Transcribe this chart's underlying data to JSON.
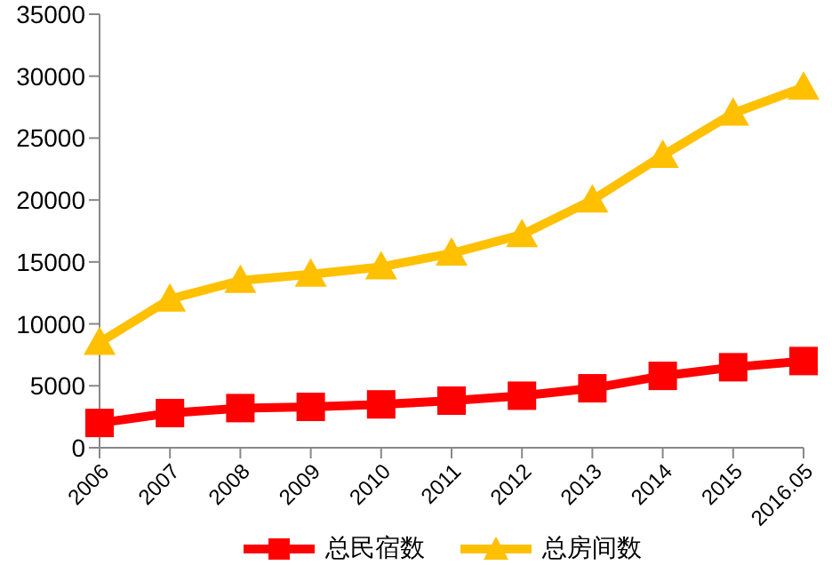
{
  "chart_data": {
    "type": "line",
    "categories": [
      "2006",
      "2007",
      "2008",
      "2009",
      "2010",
      "2011",
      "2012",
      "2013",
      "2014",
      "2015",
      "2016.05"
    ],
    "series": [
      {
        "name": "总民宿数",
        "color": "#ff0000",
        "marker": "square",
        "values": [
          2000,
          2800,
          3200,
          3300,
          3500,
          3800,
          4200,
          4800,
          5800,
          6500,
          7000
        ]
      },
      {
        "name": "总房间数",
        "color": "#ffc000",
        "marker": "triangle",
        "values": [
          8500,
          12000,
          13500,
          14000,
          14600,
          15700,
          17200,
          20000,
          23600,
          27000,
          29100
        ]
      }
    ],
    "ylim": [
      0,
      35000
    ],
    "yticks": [
      0,
      5000,
      10000,
      15000,
      20000,
      25000,
      30000,
      35000
    ],
    "grid": false,
    "legend": "bottom"
  }
}
